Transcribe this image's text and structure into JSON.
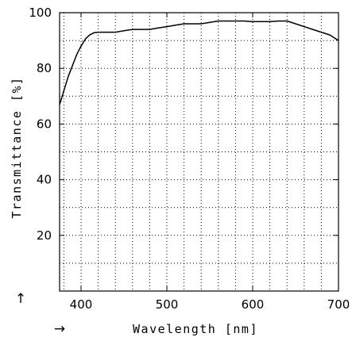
{
  "chart_data": {
    "type": "line",
    "xlabel": "Wavelength [nm]",
    "ylabel": "Transmittance [%]",
    "xlim": [
      375,
      700
    ],
    "ylim": [
      0,
      100
    ],
    "xticks": [
      400,
      500,
      600,
      700
    ],
    "yticks": [
      20,
      40,
      60,
      80,
      100
    ],
    "x_grid_step": 20,
    "y_grid_step": 10,
    "grid": true,
    "grid_style": "dotted",
    "x_arrow": "→",
    "y_arrow": "↑",
    "line_color": "#000000",
    "series": [
      {
        "x": [
          375,
          380,
          385,
          390,
          395,
          400,
          405,
          410,
          415,
          420,
          425,
          430,
          440,
          450,
          460,
          470,
          480,
          490,
          500,
          510,
          520,
          530,
          540,
          550,
          560,
          570,
          580,
          590,
          600,
          610,
          620,
          630,
          640,
          650,
          660,
          670,
          680,
          690,
          700
        ],
        "y": [
          67,
          72,
          77,
          81,
          85,
          88,
          90.5,
          92,
          92.8,
          93,
          93,
          93,
          93,
          93.5,
          94,
          94,
          94,
          94.5,
          95,
          95.5,
          96,
          96,
          96,
          96.5,
          97,
          97,
          97,
          97,
          96.8,
          96.8,
          96.8,
          97,
          97,
          96,
          95,
          94,
          93,
          92,
          90
        ]
      }
    ]
  }
}
